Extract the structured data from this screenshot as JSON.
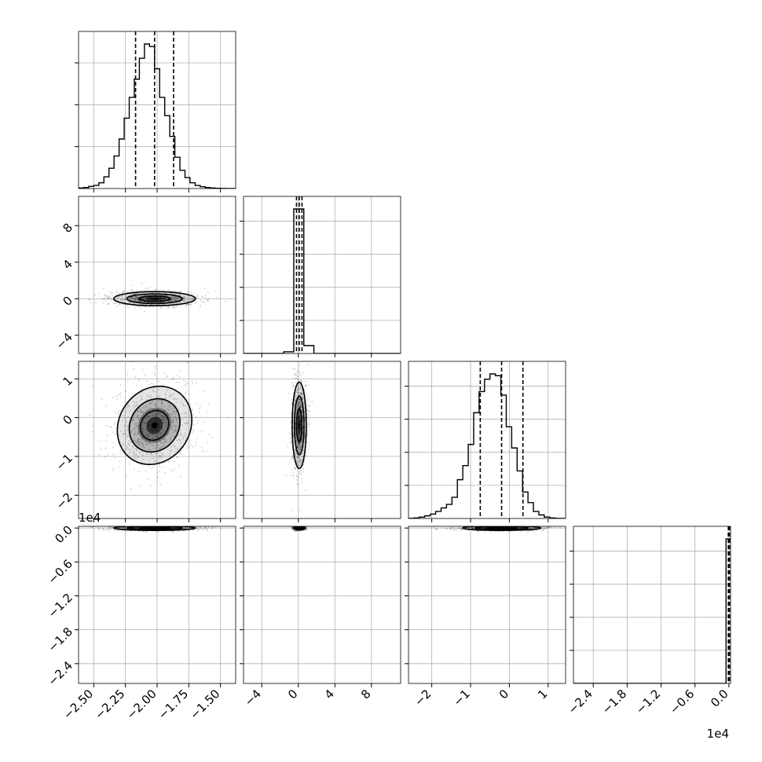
{
  "chart_data": {
    "type": "corner",
    "title": "",
    "quantiles_note": "",
    "axis_ranges": {
      "p0": [
        -2.62,
        -1.38
      ],
      "p1": [
        -6.0,
        11.2
      ],
      "p2": [
        -2.6,
        1.45
      ],
      "p3": [
        -2.75,
        0.03
      ]
    },
    "tick_labels": {
      "p0": [
        "−2.50",
        "−2.25",
        "−2.00",
        "−1.75",
        "−1.50"
      ],
      "p1": [
        "−4",
        "0",
        "4",
        "8"
      ],
      "p2": [
        "−2",
        "−1",
        "0",
        "1"
      ],
      "p3": [
        "−2.4",
        "−1.8",
        "−1.2",
        "−0.6",
        "0.0"
      ]
    },
    "offset_labels": {
      "p3_y": "1e4",
      "p3_x": "1e4"
    },
    "grid": true,
    "histograms": {
      "p0": {
        "edges": [
          -2.62,
          -2.58,
          -2.54,
          -2.5,
          -2.46,
          -2.42,
          -2.38,
          -2.34,
          -2.3,
          -2.26,
          -2.22,
          -2.18,
          -2.14,
          -2.1,
          -2.06,
          -2.02,
          -1.98,
          -1.94,
          -1.9,
          -1.86,
          -1.82,
          -1.78,
          -1.74,
          -1.7,
          -1.66,
          -1.62,
          -1.58,
          -1.54,
          -1.5,
          -1.46,
          -1.42,
          -1.38
        ],
        "counts": [
          0.2,
          0.4,
          0.8,
          1.2,
          2.2,
          4.5,
          7.8,
          12.5,
          19.0,
          27.0,
          35.0,
          42.0,
          50.0,
          55.5,
          54.5,
          46.0,
          35.0,
          28.0,
          20.0,
          12.0,
          7.0,
          4.2,
          2.2,
          1.2,
          0.7,
          0.4,
          0.2,
          0.1,
          0.05,
          0.0,
          0.0
        ],
        "quantiles": [
          -2.17,
          -2.02,
          -1.87
        ]
      },
      "p1": {
        "edges": [
          -6.0,
          -4.9,
          -3.8,
          -2.7,
          -1.6,
          -0.5,
          0.6,
          1.7,
          2.8,
          3.9,
          5.0,
          6.1,
          7.2,
          8.3,
          9.4,
          10.5,
          11.2
        ],
        "counts": [
          0,
          0,
          0,
          0,
          1.2,
          100,
          5.5,
          0,
          0,
          0,
          0,
          0,
          0,
          0,
          0,
          0
        ],
        "quantiles": [
          -0.2,
          0.1,
          0.4
        ]
      },
      "p2": {
        "edges": [
          -2.6,
          -2.46,
          -2.32,
          -2.18,
          -2.04,
          -1.9,
          -1.76,
          -1.62,
          -1.48,
          -1.34,
          -1.2,
          -1.06,
          -0.92,
          -0.78,
          -0.64,
          -0.5,
          -0.36,
          -0.22,
          -0.08,
          0.06,
          0.2,
          0.34,
          0.48,
          0.62,
          0.76,
          0.9,
          1.04,
          1.18,
          1.32,
          1.45
        ],
        "counts": [
          0.1,
          0.3,
          0.8,
          1.5,
          2.5,
          4.0,
          6.0,
          8.0,
          12.0,
          22.0,
          30.0,
          42.0,
          60.0,
          72.0,
          79.0,
          82.0,
          81.0,
          70.0,
          52.0,
          40.0,
          27.0,
          15.0,
          9.0,
          4.0,
          2.0,
          0.8,
          0.3,
          0.1,
          0.0
        ],
        "quantiles": [
          -0.75,
          -0.2,
          0.35
        ]
      },
      "p3": {
        "edges": [
          -2.75,
          -2.6,
          -2.45,
          -2.3,
          -2.15,
          -2.0,
          -1.85,
          -1.7,
          -1.55,
          -1.4,
          -1.25,
          -1.1,
          -0.95,
          -0.8,
          -0.65,
          -0.5,
          -0.35,
          -0.2,
          -0.05,
          0.03
        ],
        "counts": [
          0,
          0,
          0,
          0,
          0,
          0,
          0,
          0,
          0,
          0,
          0,
          0,
          0,
          0,
          0,
          0,
          0,
          0,
          100
        ],
        "quantiles": [
          -0.01,
          0.0,
          0.01
        ]
      }
    },
    "contour_centers": {
      "p1_vs_p0": {
        "x": -2.02,
        "y": 0.0
      },
      "p2_vs_p0": {
        "x": -2.02,
        "y": -0.2
      },
      "p2_vs_p1": {
        "x": 0.1,
        "y": -0.2
      },
      "p3_vs_p0": {
        "x": -2.02,
        "y": 0.0
      },
      "p3_vs_p1": {
        "x": 0.1,
        "y": 0.0
      },
      "p3_vs_p2": {
        "x": -0.2,
        "y": 0.0
      }
    }
  }
}
